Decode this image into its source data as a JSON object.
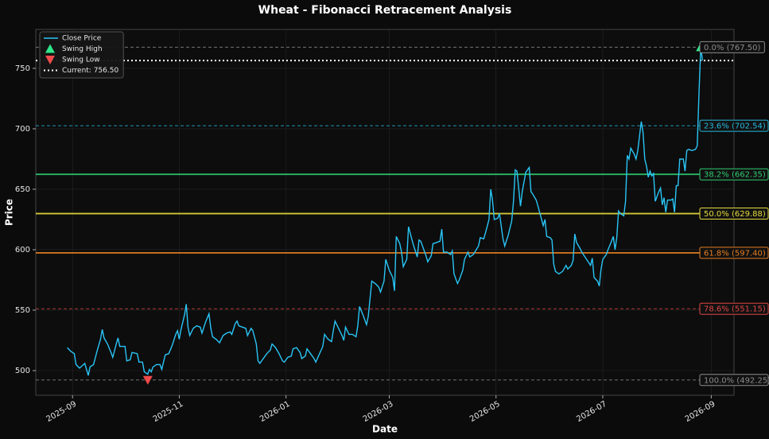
{
  "chart_data": {
    "type": "line",
    "title": "Wheat - Fibonacci Retracement Analysis",
    "xlabel": "Date",
    "ylabel": "Price",
    "xlim": [
      -21,
      378
    ],
    "ylim": [
      479.6,
      782.2
    ],
    "xticks": [
      {
        "value": 0,
        "label": "2025-09"
      },
      {
        "value": 61,
        "label": "2025-11"
      },
      {
        "value": 122,
        "label": "2026-01"
      },
      {
        "value": 181,
        "label": "2026-03"
      },
      {
        "value": 242,
        "label": "2026-05"
      },
      {
        "value": 303,
        "label": "2026-07"
      },
      {
        "value": 365,
        "label": "2026-09"
      }
    ],
    "yticks": [
      500,
      550,
      600,
      650,
      700,
      750
    ],
    "grid": true,
    "legend": "upper left",
    "series": [
      {
        "name": "Close Price",
        "color": "#29c5f6",
        "x": [
          -3,
          -1,
          1,
          2,
          4,
          7,
          8,
          9,
          10,
          12,
          14,
          16,
          17,
          18,
          20,
          22,
          23,
          25,
          26,
          27,
          30,
          31,
          33,
          34,
          37,
          38,
          40,
          41,
          43,
          44,
          45,
          46,
          48,
          50,
          51,
          53,
          55,
          57,
          59,
          60,
          61,
          62,
          64,
          65,
          66,
          67,
          69,
          71,
          73,
          74,
          76,
          78,
          79,
          80,
          82,
          84,
          86,
          88,
          90,
          91,
          93,
          94,
          95,
          97,
          99,
          100,
          102,
          103,
          105,
          106,
          107,
          109,
          111,
          113,
          114,
          116,
          118,
          120,
          121,
          123,
          125,
          126,
          128,
          130,
          131,
          133,
          134,
          136,
          138,
          139,
          143,
          144,
          146,
          148,
          149,
          150,
          152,
          154,
          155,
          156,
          158,
          160,
          162,
          163,
          164,
          166,
          168,
          169,
          171,
          173,
          175,
          176,
          178,
          179,
          181,
          183,
          184,
          185,
          187,
          188,
          189,
          191,
          192,
          194,
          195,
          197,
          198,
          199,
          202,
          203,
          205,
          206,
          208,
          210,
          211,
          212,
          214,
          216,
          217,
          218,
          220,
          221,
          223,
          224,
          226,
          227,
          229,
          232,
          233,
          235,
          236,
          238,
          239,
          240,
          241,
          243,
          244,
          246,
          247,
          249,
          251,
          252,
          253,
          254,
          256,
          257,
          259,
          261,
          262,
          263,
          265,
          266,
          269,
          270,
          271,
          273,
          274,
          275,
          276,
          278,
          280,
          282,
          283,
          285,
          286,
          287,
          288,
          290,
          291,
          296,
          297,
          298,
          300,
          301,
          302,
          303,
          305,
          306,
          308,
          309,
          310,
          311,
          312,
          313,
          315,
          316,
          317,
          318,
          319,
          321,
          322,
          323,
          325,
          326,
          327,
          328,
          329,
          330,
          331,
          332,
          333,
          335,
          336,
          337,
          338,
          339,
          340,
          342,
          343,
          344,
          345,
          346,
          347,
          348,
          349,
          350,
          351,
          352,
          354,
          356,
          357,
          358,
          359,
          360
        ],
        "values": [
          519,
          516,
          514,
          505,
          502,
          506,
          501,
          496,
          503,
          505,
          516,
          526,
          534,
          527,
          522,
          515,
          511,
          522,
          527,
          520,
          520,
          508,
          509,
          515,
          514,
          507,
          507,
          499,
          497,
          501,
          499,
          503,
          505,
          505,
          501,
          513,
          514,
          521,
          530,
          533,
          526,
          534,
          546,
          555,
          536,
          529,
          535,
          537,
          536,
          531,
          540,
          547,
          535,
          528,
          526,
          523,
          529,
          531,
          532,
          530,
          539,
          541,
          537,
          536,
          535,
          529,
          535,
          533,
          522,
          508,
          506,
          510,
          514,
          517,
          522,
          519,
          514,
          508,
          507,
          511,
          512,
          518,
          519,
          515,
          510,
          512,
          518,
          514,
          510,
          507,
          520,
          530,
          526,
          524,
          533,
          541,
          535,
          529,
          525,
          536,
          530,
          530,
          528,
          537,
          553,
          546,
          538,
          545,
          574,
          572,
          569,
          565,
          574,
          592,
          583,
          577,
          566,
          611,
          605,
          598,
          586,
          592,
          619,
          608,
          603,
          594,
          608,
          607,
          595,
          590,
          595,
          605,
          606,
          607,
          617,
          598,
          598,
          596,
          599,
          580,
          572,
          575,
          583,
          592,
          598,
          594,
          596,
          603,
          610,
          609,
          614,
          625,
          650,
          641,
          625,
          626,
          630,
          609,
          603,
          612,
          624,
          640,
          666,
          665,
          636,
          648,
          664,
          668,
          648,
          646,
          641,
          636,
          620,
          625,
          611,
          610,
          608,
          588,
          582,
          580,
          582,
          587,
          584,
          587,
          591,
          613,
          606,
          601,
          598,
          587,
          593,
          577,
          574,
          570,
          584,
          592,
          596,
          600,
          607,
          611,
          600,
          610,
          632,
          630,
          628,
          640,
          678,
          675,
          684,
          679,
          675,
          682,
          706,
          697,
          675,
          669,
          660,
          665,
          661,
          663,
          640,
          648,
          651,
          637,
          643,
          631,
          641,
          641,
          642,
          631,
          653,
          653,
          675,
          675,
          675,
          665,
          682,
          683,
          682,
          683,
          686,
          730,
          767.5,
          756.5
        ]
      }
    ],
    "swing_high": {
      "name": "Swing High",
      "color": "#2ee88a",
      "x": 359,
      "value": 767.5
    },
    "swing_low": {
      "name": "Swing Low",
      "color": "#f04a4a",
      "x": 43,
      "value": 492.25
    },
    "current": {
      "name": "Current: 756.50",
      "value": 756.5,
      "color": "#ffffff"
    },
    "levels": [
      {
        "label": "0.0% (767.50)",
        "value": 767.5,
        "color": "#8c8c8c",
        "style": "dashed"
      },
      {
        "label": "23.6% (702.54)",
        "value": 702.54,
        "color": "#25b9dc",
        "style": "dashed"
      },
      {
        "label": "38.2% (662.35)",
        "value": 662.35,
        "color": "#2ecc71",
        "style": "solid"
      },
      {
        "label": "50.0% (629.88)",
        "value": 629.88,
        "color": "#e6dc3c",
        "style": "solid"
      },
      {
        "label": "61.8% (597.40)",
        "value": 597.4,
        "color": "#e67e22",
        "style": "solid"
      },
      {
        "label": "78.6% (551.15)",
        "value": 551.15,
        "color": "#e04444",
        "style": "dashed"
      },
      {
        "label": "100.0% (492.25)",
        "value": 492.25,
        "color": "#8c8c8c",
        "style": "dashed"
      }
    ]
  }
}
